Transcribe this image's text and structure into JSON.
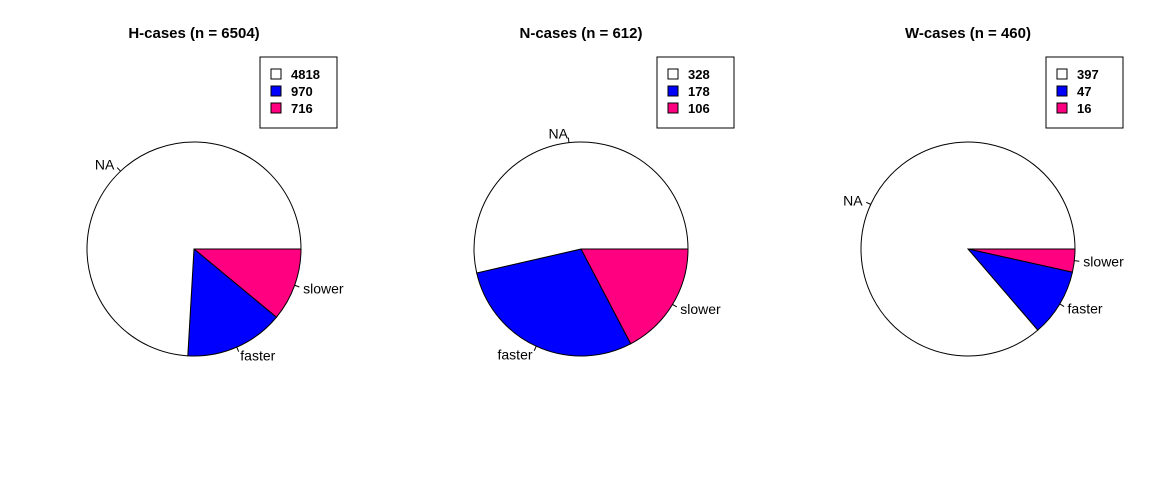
{
  "chart_data": [
    {
      "type": "pie",
      "title": "H-cases (n = 6504)",
      "slices": [
        {
          "label": "slower",
          "value": 716,
          "color": "#ff0080"
        },
        {
          "label": "faster",
          "value": 970,
          "color": "#0000ff"
        },
        {
          "label": "NA",
          "value": 4818,
          "color": "#ffffff"
        }
      ],
      "legend": [
        {
          "label": "4818",
          "color": "#ffffff"
        },
        {
          "label": "970",
          "color": "#0000ff"
        },
        {
          "label": "716",
          "color": "#ff0080"
        }
      ],
      "legend_position": "top-right"
    },
    {
      "type": "pie",
      "title": "N-cases (n = 612)",
      "slices": [
        {
          "label": "slower",
          "value": 106,
          "color": "#ff0080"
        },
        {
          "label": "faster",
          "value": 178,
          "color": "#0000ff"
        },
        {
          "label": "NA",
          "value": 328,
          "color": "#ffffff"
        }
      ],
      "legend": [
        {
          "label": "328",
          "color": "#ffffff"
        },
        {
          "label": "178",
          "color": "#0000ff"
        },
        {
          "label": "106",
          "color": "#ff0080"
        }
      ],
      "legend_position": "top-right"
    },
    {
      "type": "pie",
      "title": "W-cases (n = 460)",
      "slices": [
        {
          "label": "slower",
          "value": 16,
          "color": "#ff0080"
        },
        {
          "label": "faster",
          "value": 47,
          "color": "#0000ff"
        },
        {
          "label": "NA",
          "value": 397,
          "color": "#ffffff"
        }
      ],
      "legend": [
        {
          "label": "397",
          "color": "#ffffff"
        },
        {
          "label": "47",
          "color": "#0000ff"
        },
        {
          "label": "16",
          "color": "#ff0080"
        }
      ],
      "legend_position": "top-right"
    }
  ]
}
